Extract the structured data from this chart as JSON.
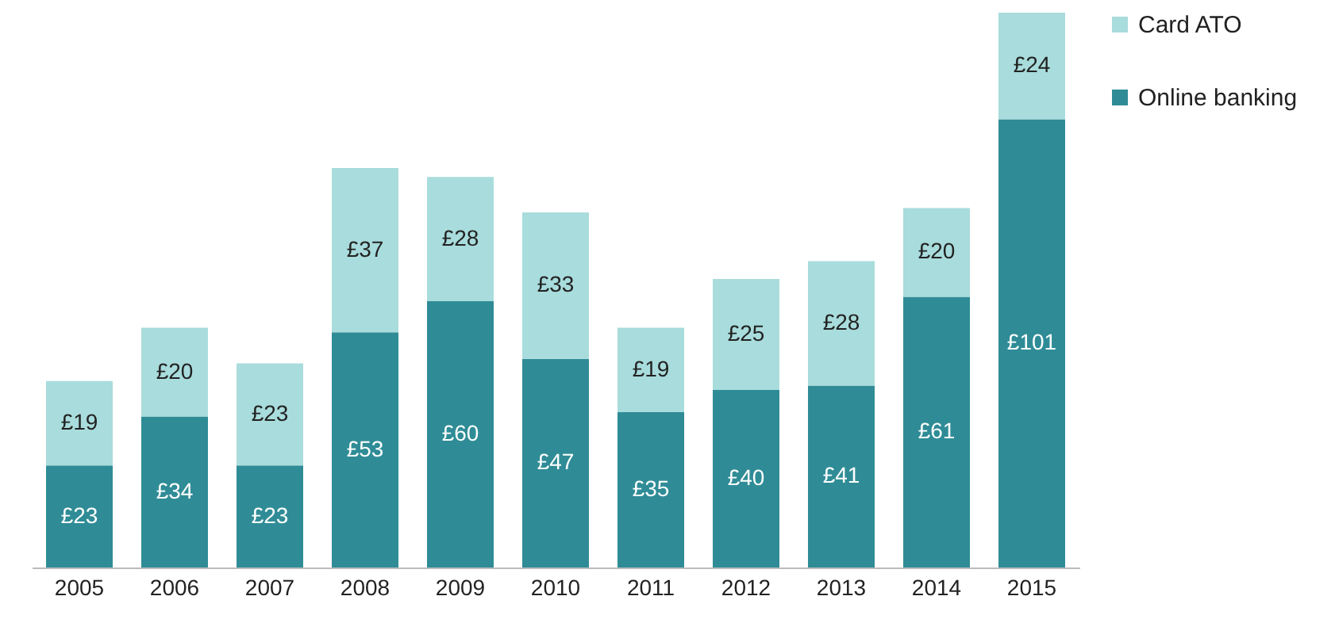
{
  "chart_data": {
    "type": "bar",
    "stacked": true,
    "legend": "right",
    "categories": [
      "2005",
      "2006",
      "2007",
      "2008",
      "2009",
      "2010",
      "2011",
      "2012",
      "2013",
      "2014",
      "2015"
    ],
    "series": [
      {
        "name": "Online banking",
        "color": "#2f8c96",
        "values": [
          23,
          34,
          23,
          53,
          60,
          47,
          35,
          40,
          41,
          61,
          101
        ],
        "value_labels": [
          "£23",
          "£34",
          "£23",
          "£53",
          "£60",
          "£47",
          "£35",
          "£40",
          "£41",
          "£61",
          "£101"
        ]
      },
      {
        "name": "Card ATO",
        "color": "#a9dcdc",
        "values": [
          19,
          20,
          23,
          37,
          28,
          33,
          19,
          25,
          28,
          20,
          24
        ],
        "value_labels": [
          "£19",
          "£20",
          "£23",
          "£37",
          "£28",
          "£33",
          "£19",
          "£25",
          "£28",
          "£20",
          "£24"
        ]
      }
    ]
  }
}
